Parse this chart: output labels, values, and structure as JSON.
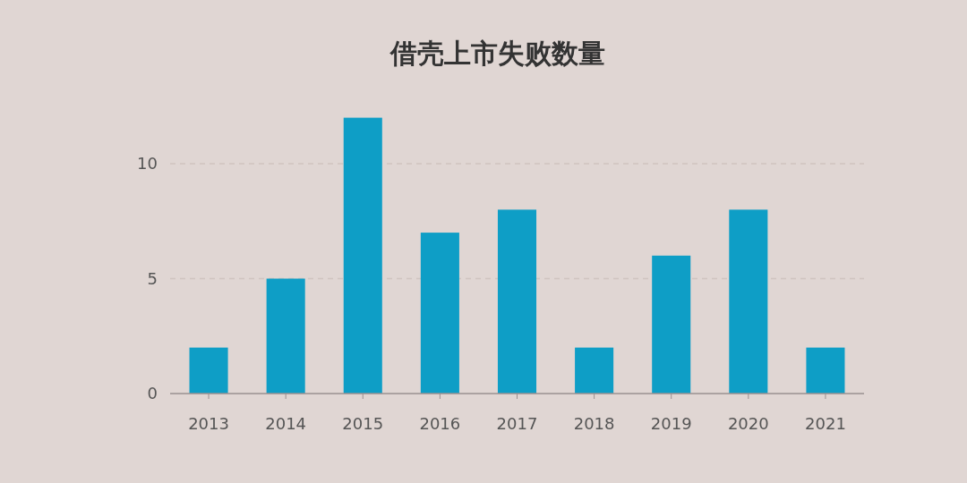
{
  "chart_data": {
    "type": "bar",
    "title": "借壳上市失败数量",
    "categories": [
      "2013",
      "2014",
      "2015",
      "2016",
      "2017",
      "2018",
      "2019",
      "2020",
      "2021"
    ],
    "values": [
      2,
      5,
      12,
      7,
      8,
      2,
      6,
      8,
      2
    ],
    "color": "#0e9ec6",
    "ylim": [
      0,
      12
    ],
    "yticks": [
      0,
      5,
      10
    ],
    "grid": "y"
  }
}
